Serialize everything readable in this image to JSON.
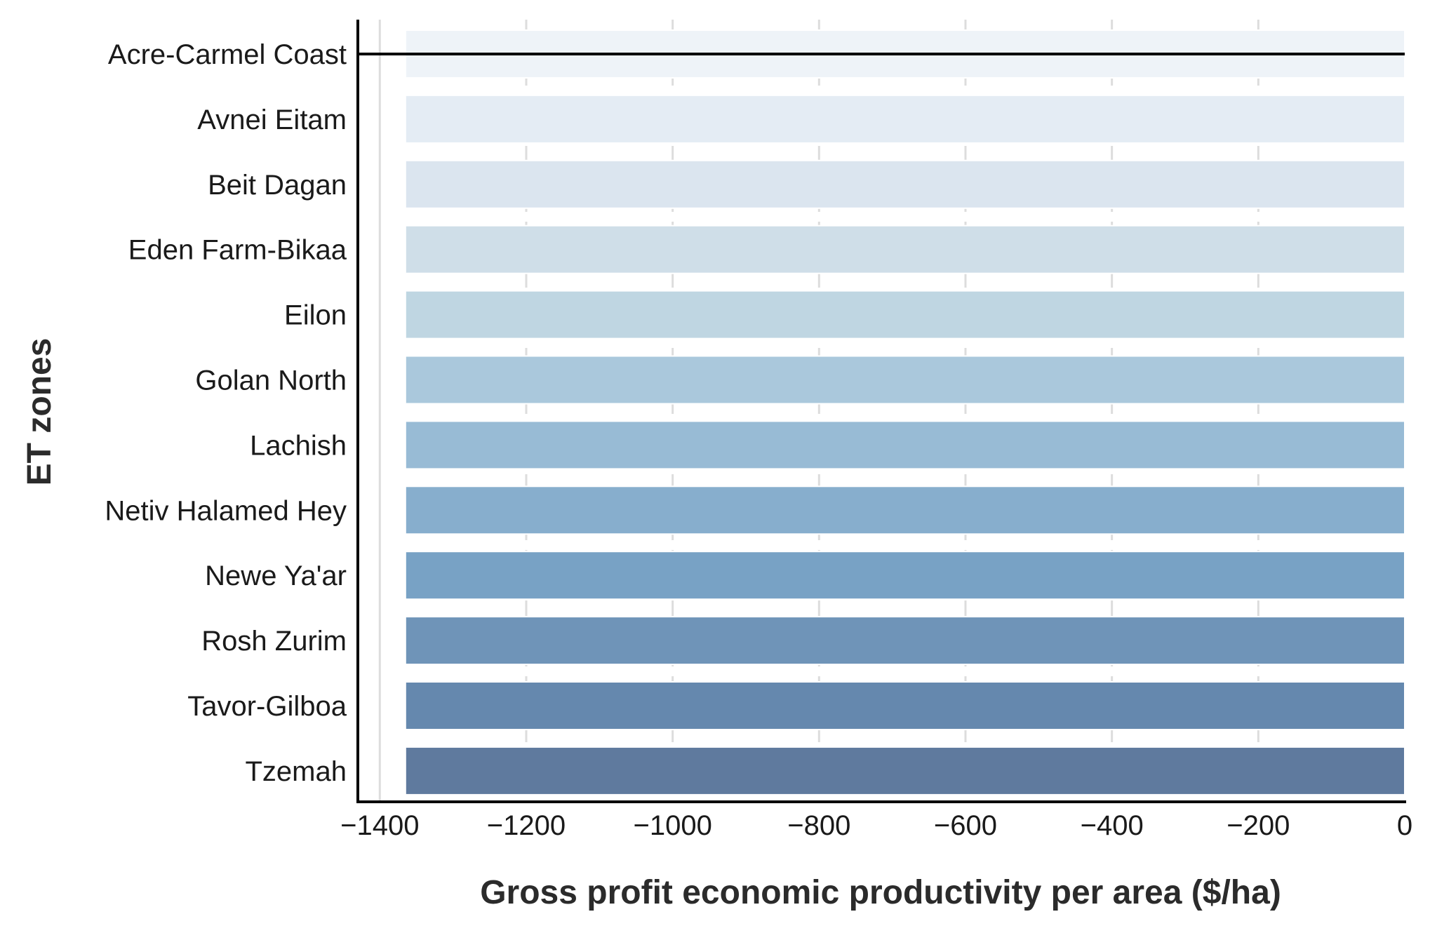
{
  "chart_data": {
    "type": "bar",
    "orientation": "horizontal",
    "title": "",
    "xlabel": "Gross profit economic productivity per area ($/ha)",
    "ylabel": "ET zones",
    "categories": [
      "Acre-Carmel Coast",
      "Avnei Eitam",
      "Beit Dagan",
      "Eden Farm-Bikaa",
      "Eilon",
      "Golan North",
      "Lachish",
      "Netiv Halamed Hey",
      "Newe Ya'ar",
      "Rosh Zurim",
      "Tavor-Gilboa",
      "Tzemah"
    ],
    "values": [
      -1365,
      -1365,
      -1365,
      -1365,
      -1365,
      -1365,
      -1365,
      -1365,
      -1365,
      -1365,
      -1365,
      -1365
    ],
    "xlim": [
      -1430,
      0
    ],
    "xticks": [
      -1400,
      -1200,
      -1000,
      -800,
      -600,
      -400,
      -200,
      0
    ],
    "xtick_labels": [
      "−1400",
      "−1200",
      "−1000",
      "−800",
      "−600",
      "−400",
      "−200",
      "0"
    ],
    "grid": "vertical dashed",
    "legend": "none",
    "bar_colors": [
      "#eef3f8",
      "#e4ecf4",
      "#dbe5ef",
      "#cfdee8",
      "#bfd6e2",
      "#aac8dc",
      "#98bbd5",
      "#87aecd",
      "#78a2c5",
      "#6f94b8",
      "#6588ae",
      "#5f7a9e"
    ],
    "highlight_category": "Acre-Carmel Coast",
    "highlight_line_color": "#000000"
  }
}
